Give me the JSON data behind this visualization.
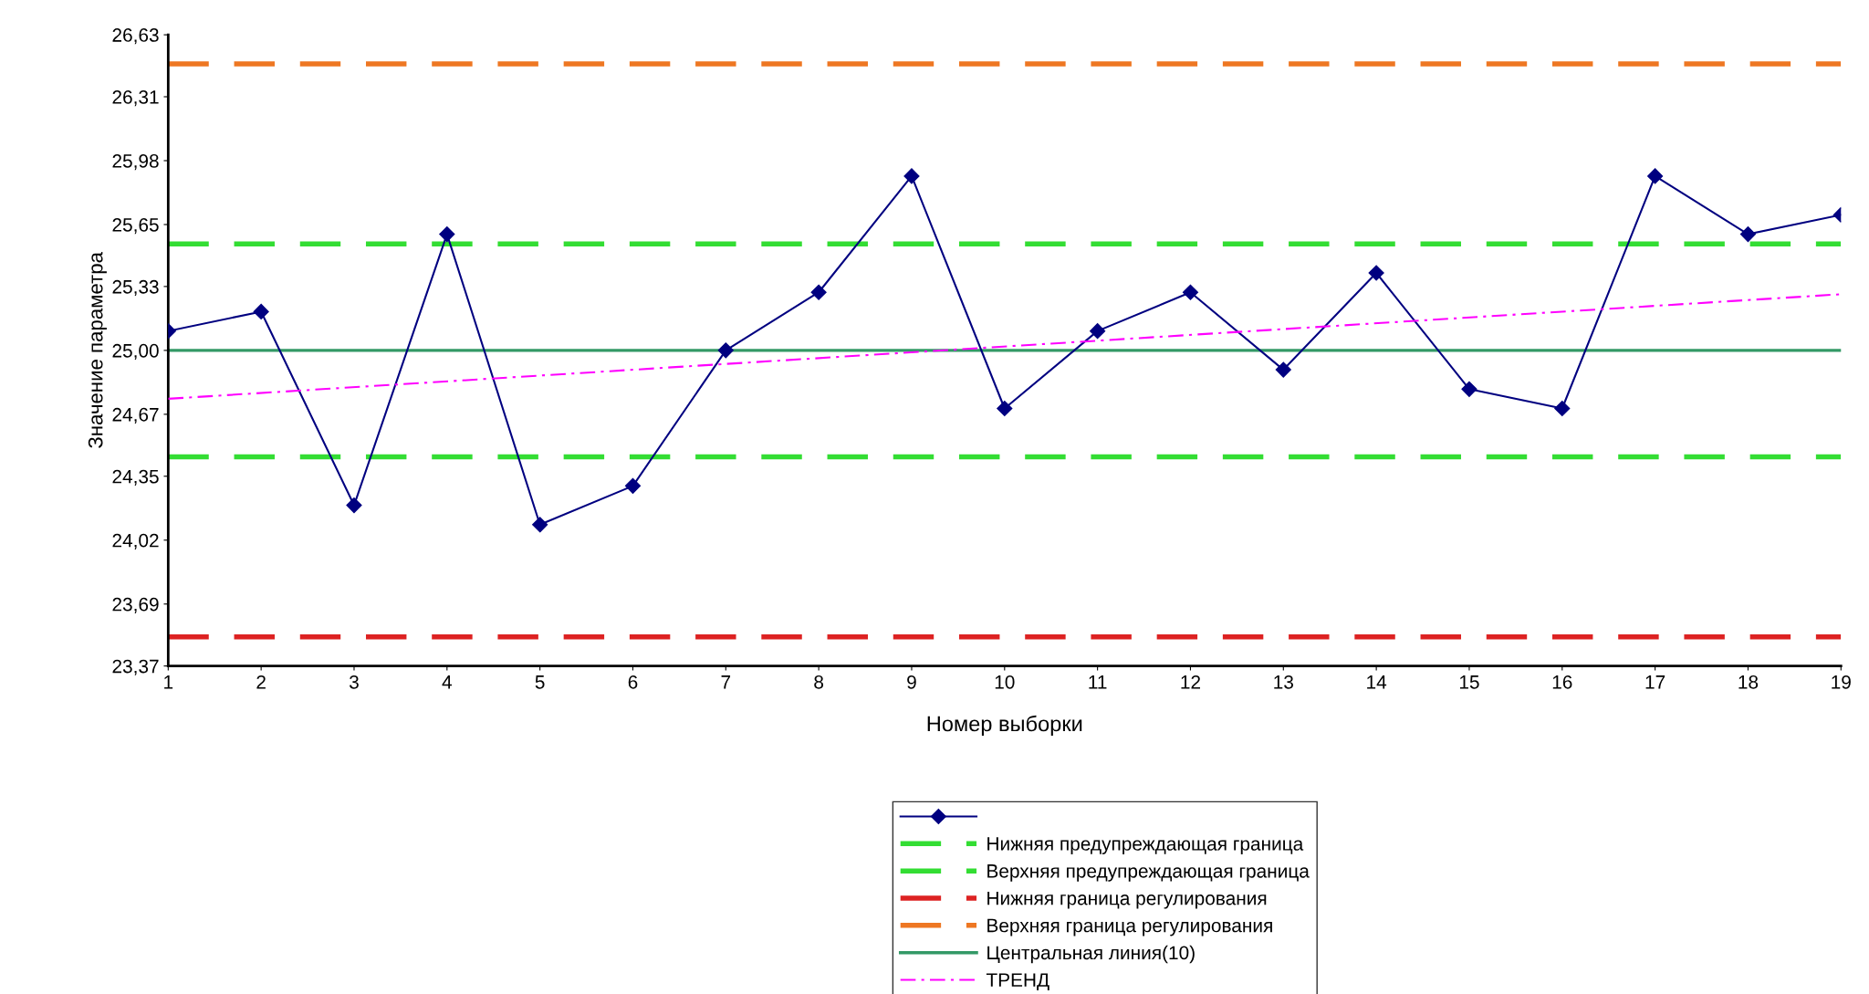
{
  "chart_data": {
    "type": "line",
    "xlabel": "Номер выборки",
    "ylabel": "Значение параметра",
    "x": [
      1,
      2,
      3,
      4,
      5,
      6,
      7,
      8,
      9,
      10,
      11,
      12,
      13,
      14,
      15,
      16,
      17,
      18,
      19
    ],
    "series": [
      {
        "color": "#000080",
        "marker": "diamond",
        "values": [
          25.1,
          25.2,
          24.2,
          25.6,
          24.1,
          24.3,
          25.0,
          25.3,
          25.9,
          24.7,
          25.1,
          25.3,
          24.9,
          25.4,
          24.8,
          24.7,
          25.9,
          25.6,
          25.7
        ]
      },
      {
        "name": "ТРЕНД",
        "type": "line",
        "color": "#ff00ff",
        "line_style": "dashdot",
        "marker": "none",
        "x": [
          1,
          19
        ],
        "values": [
          24.75,
          25.29
        ]
      }
    ],
    "ref_lines": [
      {
        "axis": "y",
        "value": 24.45,
        "label": "Нижняя предупреждающая граница",
        "color": "#33dd33",
        "line_style": "dashed"
      },
      {
        "axis": "y",
        "value": 25.55,
        "label": "Верхняя предупреждающая граница",
        "color": "#33dd33",
        "line_style": "dashed"
      },
      {
        "axis": "y",
        "value": 23.52,
        "label": "Нижняя граница регулирования",
        "color": "#dd2222",
        "line_style": "dashed"
      },
      {
        "axis": "y",
        "value": 26.48,
        "label": "Верхняя граница регулирования",
        "color": "#ee7722",
        "line_style": "dashed"
      },
      {
        "axis": "y",
        "value": 25.0,
        "label": "Центральная линия(10)",
        "color": "#339966",
        "line_style": "solid"
      }
    ],
    "xlim": [
      1,
      19
    ],
    "xticks": [
      1,
      2,
      3,
      4,
      5,
      6,
      7,
      8,
      9,
      10,
      11,
      12,
      13,
      14,
      15,
      16,
      17,
      18,
      19
    ],
    "ylim": [
      23.37,
      26.63
    ],
    "yticks": [
      {
        "value": 23.37,
        "label": "23,37"
      },
      {
        "value": 23.69,
        "label": "23,69"
      },
      {
        "value": 24.02,
        "label": "24,02"
      },
      {
        "value": 24.35,
        "label": "24,35"
      },
      {
        "value": 24.67,
        "label": "24,67"
      },
      {
        "value": 25.0,
        "label": "25,00"
      },
      {
        "value": 25.33,
        "label": "25,33"
      },
      {
        "value": 25.65,
        "label": "25,65"
      },
      {
        "value": 25.98,
        "label": "25,98"
      },
      {
        "value": 26.31,
        "label": "26,31"
      },
      {
        "value": 26.63,
        "label": "26,63"
      }
    ],
    "grid": false,
    "legend": "bottom"
  }
}
